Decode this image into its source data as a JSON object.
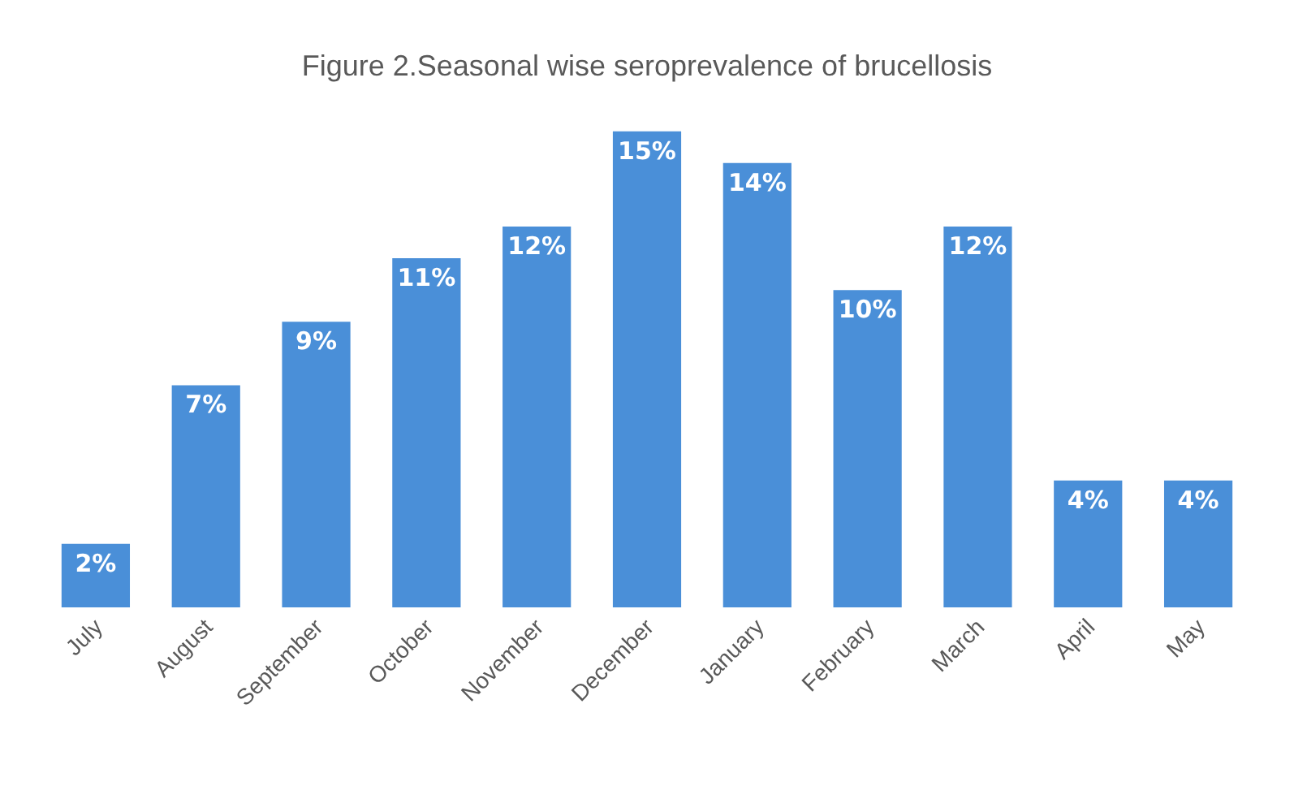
{
  "chart_data": {
    "type": "bar",
    "title": "Figure 2.Seasonal wise seroprevalence of brucellosis",
    "categories": [
      "July",
      "August",
      "September",
      "October",
      "November",
      "December",
      "January",
      "February",
      "March",
      "April",
      "May"
    ],
    "values": [
      2,
      7,
      9,
      11,
      12,
      15,
      14,
      10,
      12,
      4,
      4
    ],
    "value_labels": [
      "2%",
      "7%",
      "9%",
      "11%",
      "12%",
      "15%",
      "14%",
      "10%",
      "12%",
      "4%",
      "4%"
    ],
    "color": "#4a8fd8"
  }
}
